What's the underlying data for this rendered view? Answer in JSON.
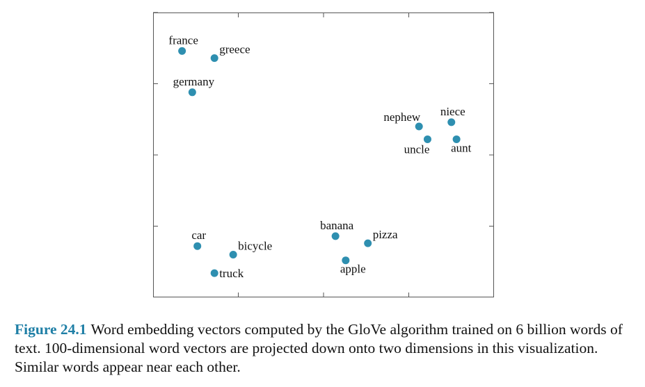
{
  "chart_data": {
    "type": "scatter",
    "title": "",
    "xlabel": "",
    "ylabel": "",
    "xlim": [
      0,
      10
    ],
    "ylim": [
      0,
      10
    ],
    "grid": false,
    "legend": "none",
    "point_color": "#2e8fb0",
    "frame_color": "#555555",
    "points": [
      {
        "label": "france",
        "x": 0.85,
        "y": 8.65,
        "label_pos": "above"
      },
      {
        "label": "greece",
        "x": 1.8,
        "y": 8.4,
        "label_pos": "above-right"
      },
      {
        "label": "germany",
        "x": 1.15,
        "y": 7.2,
        "label_pos": "above"
      },
      {
        "label": "nephew",
        "x": 7.8,
        "y": 6.0,
        "label_pos": "above-left"
      },
      {
        "label": "niece",
        "x": 8.75,
        "y": 6.15,
        "label_pos": "above"
      },
      {
        "label": "uncle",
        "x": 8.05,
        "y": 5.55,
        "label_pos": "below-left"
      },
      {
        "label": "aunt",
        "x": 8.9,
        "y": 5.55,
        "label_pos": "below-right"
      },
      {
        "label": "banana",
        "x": 5.35,
        "y": 2.15,
        "label_pos": "above"
      },
      {
        "label": "pizza",
        "x": 6.3,
        "y": 1.9,
        "label_pos": "above-right"
      },
      {
        "label": "apple",
        "x": 5.65,
        "y": 1.3,
        "label_pos": "below-right"
      },
      {
        "label": "car",
        "x": 1.3,
        "y": 1.8,
        "label_pos": "above"
      },
      {
        "label": "bicycle",
        "x": 2.35,
        "y": 1.5,
        "label_pos": "above-right"
      },
      {
        "label": "truck",
        "x": 1.8,
        "y": 0.85,
        "label_pos": "right"
      }
    ],
    "x_ticks": [
      2.5,
      5.0,
      7.5
    ],
    "y_ticks": [
      2.5,
      5.0,
      7.5,
      10.0
    ]
  },
  "caption": {
    "label": "Figure 24.1",
    "text": "Word embedding vectors computed by the GloVe algorithm trained on 6 billion words of text. 100-dimensional word vectors are projected down onto two dimensions in this visualization. Similar words appear near each other.",
    "label_color": "#1f7fa6"
  }
}
